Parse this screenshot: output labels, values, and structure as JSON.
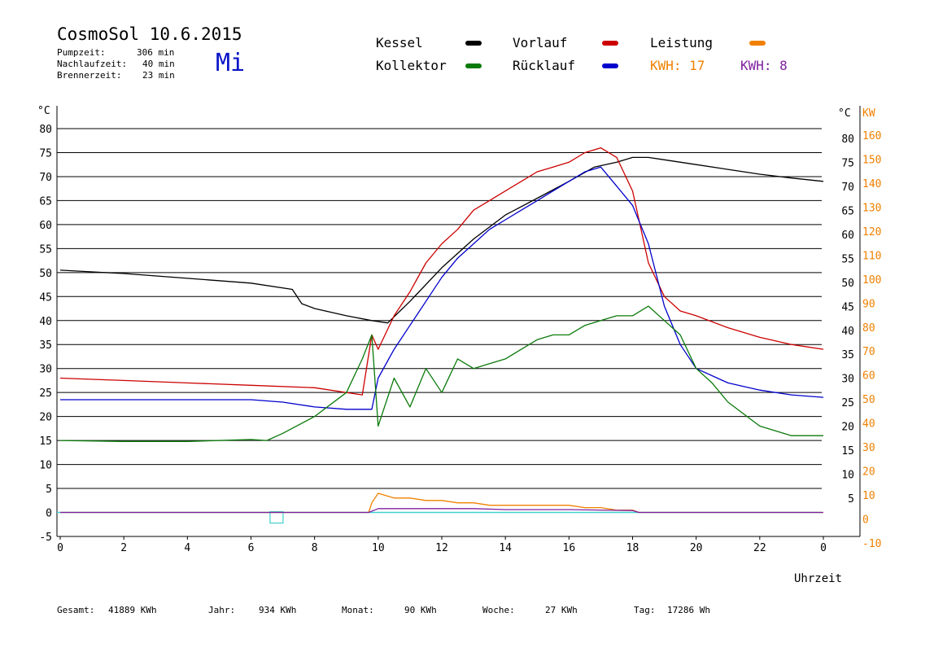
{
  "header": {
    "title": "CosmoSol 10.6.2015",
    "day": "Mi",
    "stats": [
      {
        "label": "Pumpzeit:",
        "value": "306 min"
      },
      {
        "label": "Nachlaufzeit:",
        "value": "40 min"
      },
      {
        "label": "Brennerzeit:",
        "value": "23 min"
      }
    ]
  },
  "legend": {
    "kessel": "Kessel",
    "kollektor": "Kollektor",
    "vorlauf": "Vorlauf",
    "ruecklauf": "Rücklauf",
    "leistung": "Leistung",
    "kwh1": "KWH: 17",
    "kwh2": "KWH: 8"
  },
  "footer": {
    "gesamt_label": "Gesamt:",
    "gesamt_value": "41889 KWh",
    "jahr_label": "Jahr:",
    "jahr_value": "934 KWh",
    "monat_label": "Monat:",
    "monat_value": "90 KWh",
    "woche_label": "Woche:",
    "woche_value": "27 KWh",
    "tag_label": "Tag:",
    "tag_value": "17286 Wh"
  },
  "colors": {
    "kessel": "#000000",
    "kollektor": "#0a7a0a",
    "vorlauf": "#cc0000",
    "ruecklauf": "#0000cc",
    "leistung": "#f08000",
    "kwh2": "#8020a0",
    "baseline": "#40d0d0",
    "day": "#0a14c8"
  },
  "chart_data": {
    "type": "line",
    "title": "CosmoSol 10.6.2015",
    "xlabel": "Uhrzeit",
    "ylabel_left": "°C",
    "ylabel_right_temp": "°C",
    "ylabel_right_power": "KW",
    "xlim": [
      0,
      24
    ],
    "ylim": [
      -5,
      80
    ],
    "x_ticks": [
      "0",
      "2",
      "4",
      "6",
      "8",
      "10",
      "12",
      "14",
      "16",
      "18",
      "20",
      "22",
      "0"
    ],
    "y_ticks_left": [
      "80",
      "75",
      "70",
      "65",
      "60",
      "55",
      "50",
      "45",
      "40",
      "35",
      "30",
      "25",
      "20",
      "15",
      "10",
      "5",
      "0",
      "-5"
    ],
    "y_ticks_right": [
      "80",
      "75",
      "70",
      "65",
      "60",
      "55",
      "50",
      "45",
      "40",
      "35",
      "30",
      "25",
      "20",
      "15",
      "10",
      "5"
    ],
    "y_ticks_power": [
      "160",
      "150",
      "140",
      "130",
      "120",
      "110",
      "100",
      "90",
      "80",
      "70",
      "60",
      "50",
      "40",
      "30",
      "20",
      "10",
      "0",
      "-10"
    ],
    "grid": true,
    "series": [
      {
        "name": "Kessel",
        "color": "#000000",
        "x": [
          0,
          2,
          4,
          6,
          7.3,
          7.6,
          8,
          9,
          9.8,
          10.3,
          11,
          12,
          13,
          14,
          15,
          16,
          16.8,
          17.5,
          18,
          18.5,
          19,
          20,
          21,
          22,
          23,
          24
        ],
        "y": [
          50.5,
          49.8,
          48.8,
          47.8,
          46.5,
          43.5,
          42.5,
          41,
          40,
          39.5,
          44,
          51,
          57,
          62,
          65.5,
          69,
          72,
          73,
          74,
          74,
          73.5,
          72.5,
          71.5,
          70.5,
          69.7,
          69
        ]
      },
      {
        "name": "Vorlauf",
        "color": "#cc0000",
        "x": [
          0,
          2,
          4,
          6,
          8,
          9.5,
          9.8,
          10,
          10.5,
          11,
          11.5,
          12,
          12.5,
          13,
          13.5,
          14,
          14.5,
          15,
          15.5,
          16,
          16.5,
          17,
          17.5,
          18,
          18.5,
          19,
          19.5,
          20,
          21,
          22,
          23,
          24
        ],
        "y": [
          28,
          27.5,
          27,
          26.5,
          26,
          24.5,
          37,
          34,
          41,
          46,
          52,
          56,
          59,
          63,
          65,
          67,
          69,
          71,
          72,
          73,
          75,
          76,
          74,
          67,
          52,
          45,
          42,
          41,
          38.5,
          36.5,
          35,
          34
        ]
      },
      {
        "name": "Rücklauf",
        "color": "#0000cc",
        "x": [
          0,
          2,
          4,
          6,
          7,
          8,
          9,
          9.8,
          10,
          10.5,
          11,
          11.5,
          12,
          12.5,
          13,
          13.5,
          14,
          14.5,
          15,
          15.5,
          16,
          16.5,
          17,
          17.5,
          18,
          18.5,
          19,
          19.5,
          20,
          21,
          22,
          23,
          24
        ],
        "y": [
          23.5,
          23.5,
          23.5,
          23.5,
          23,
          22,
          21.5,
          21.5,
          28,
          34,
          39,
          44,
          49,
          53,
          56,
          59,
          61,
          63,
          65,
          67,
          69,
          71,
          72,
          68,
          64,
          56,
          43,
          35,
          30,
          27,
          25.5,
          24.5,
          24
        ]
      },
      {
        "name": "Kollektor",
        "color": "#0a7a0a",
        "x": [
          0,
          2,
          4,
          6,
          6.5,
          7,
          8,
          9,
          9.5,
          9.8,
          10,
          10.5,
          11,
          11.5,
          12,
          12.5,
          13,
          13.5,
          14,
          14.5,
          15,
          15.5,
          16,
          16.5,
          17,
          17.5,
          18,
          18.5,
          19,
          19.5,
          20,
          20.5,
          21,
          22,
          23,
          24
        ],
        "y": [
          15,
          14.8,
          14.8,
          15.2,
          15,
          16.5,
          20,
          25,
          32,
          37,
          18,
          28,
          22,
          30,
          25,
          32,
          30,
          31,
          32,
          34,
          36,
          37,
          37,
          39,
          40,
          41,
          41,
          43,
          40,
          37,
          30,
          27,
          23,
          18,
          16,
          16
        ]
      },
      {
        "name": "Leistung",
        "color": "#f08000",
        "x": [
          0,
          9.7,
          9.8,
          10,
          10.5,
          11,
          11.5,
          12,
          12.5,
          13,
          13.5,
          14,
          14.5,
          15,
          15.5,
          16,
          16.5,
          17,
          17.5,
          18,
          18.2,
          24
        ],
        "y": [
          0,
          0,
          2,
          4,
          3,
          3,
          2.5,
          2.5,
          2,
          2,
          1.5,
          1.5,
          1.5,
          1.5,
          1.5,
          1.5,
          1,
          1,
          0.5,
          0.5,
          0,
          0
        ]
      },
      {
        "name": "KWH: 8",
        "color": "#8020a0",
        "x": [
          0,
          9.7,
          10,
          11,
          12,
          13,
          14,
          15,
          16,
          17,
          18,
          18.2,
          24
        ],
        "y": [
          0,
          0,
          0.8,
          0.8,
          0.8,
          0.8,
          0.6,
          0.6,
          0.6,
          0.5,
          0.4,
          0,
          0
        ]
      }
    ]
  }
}
